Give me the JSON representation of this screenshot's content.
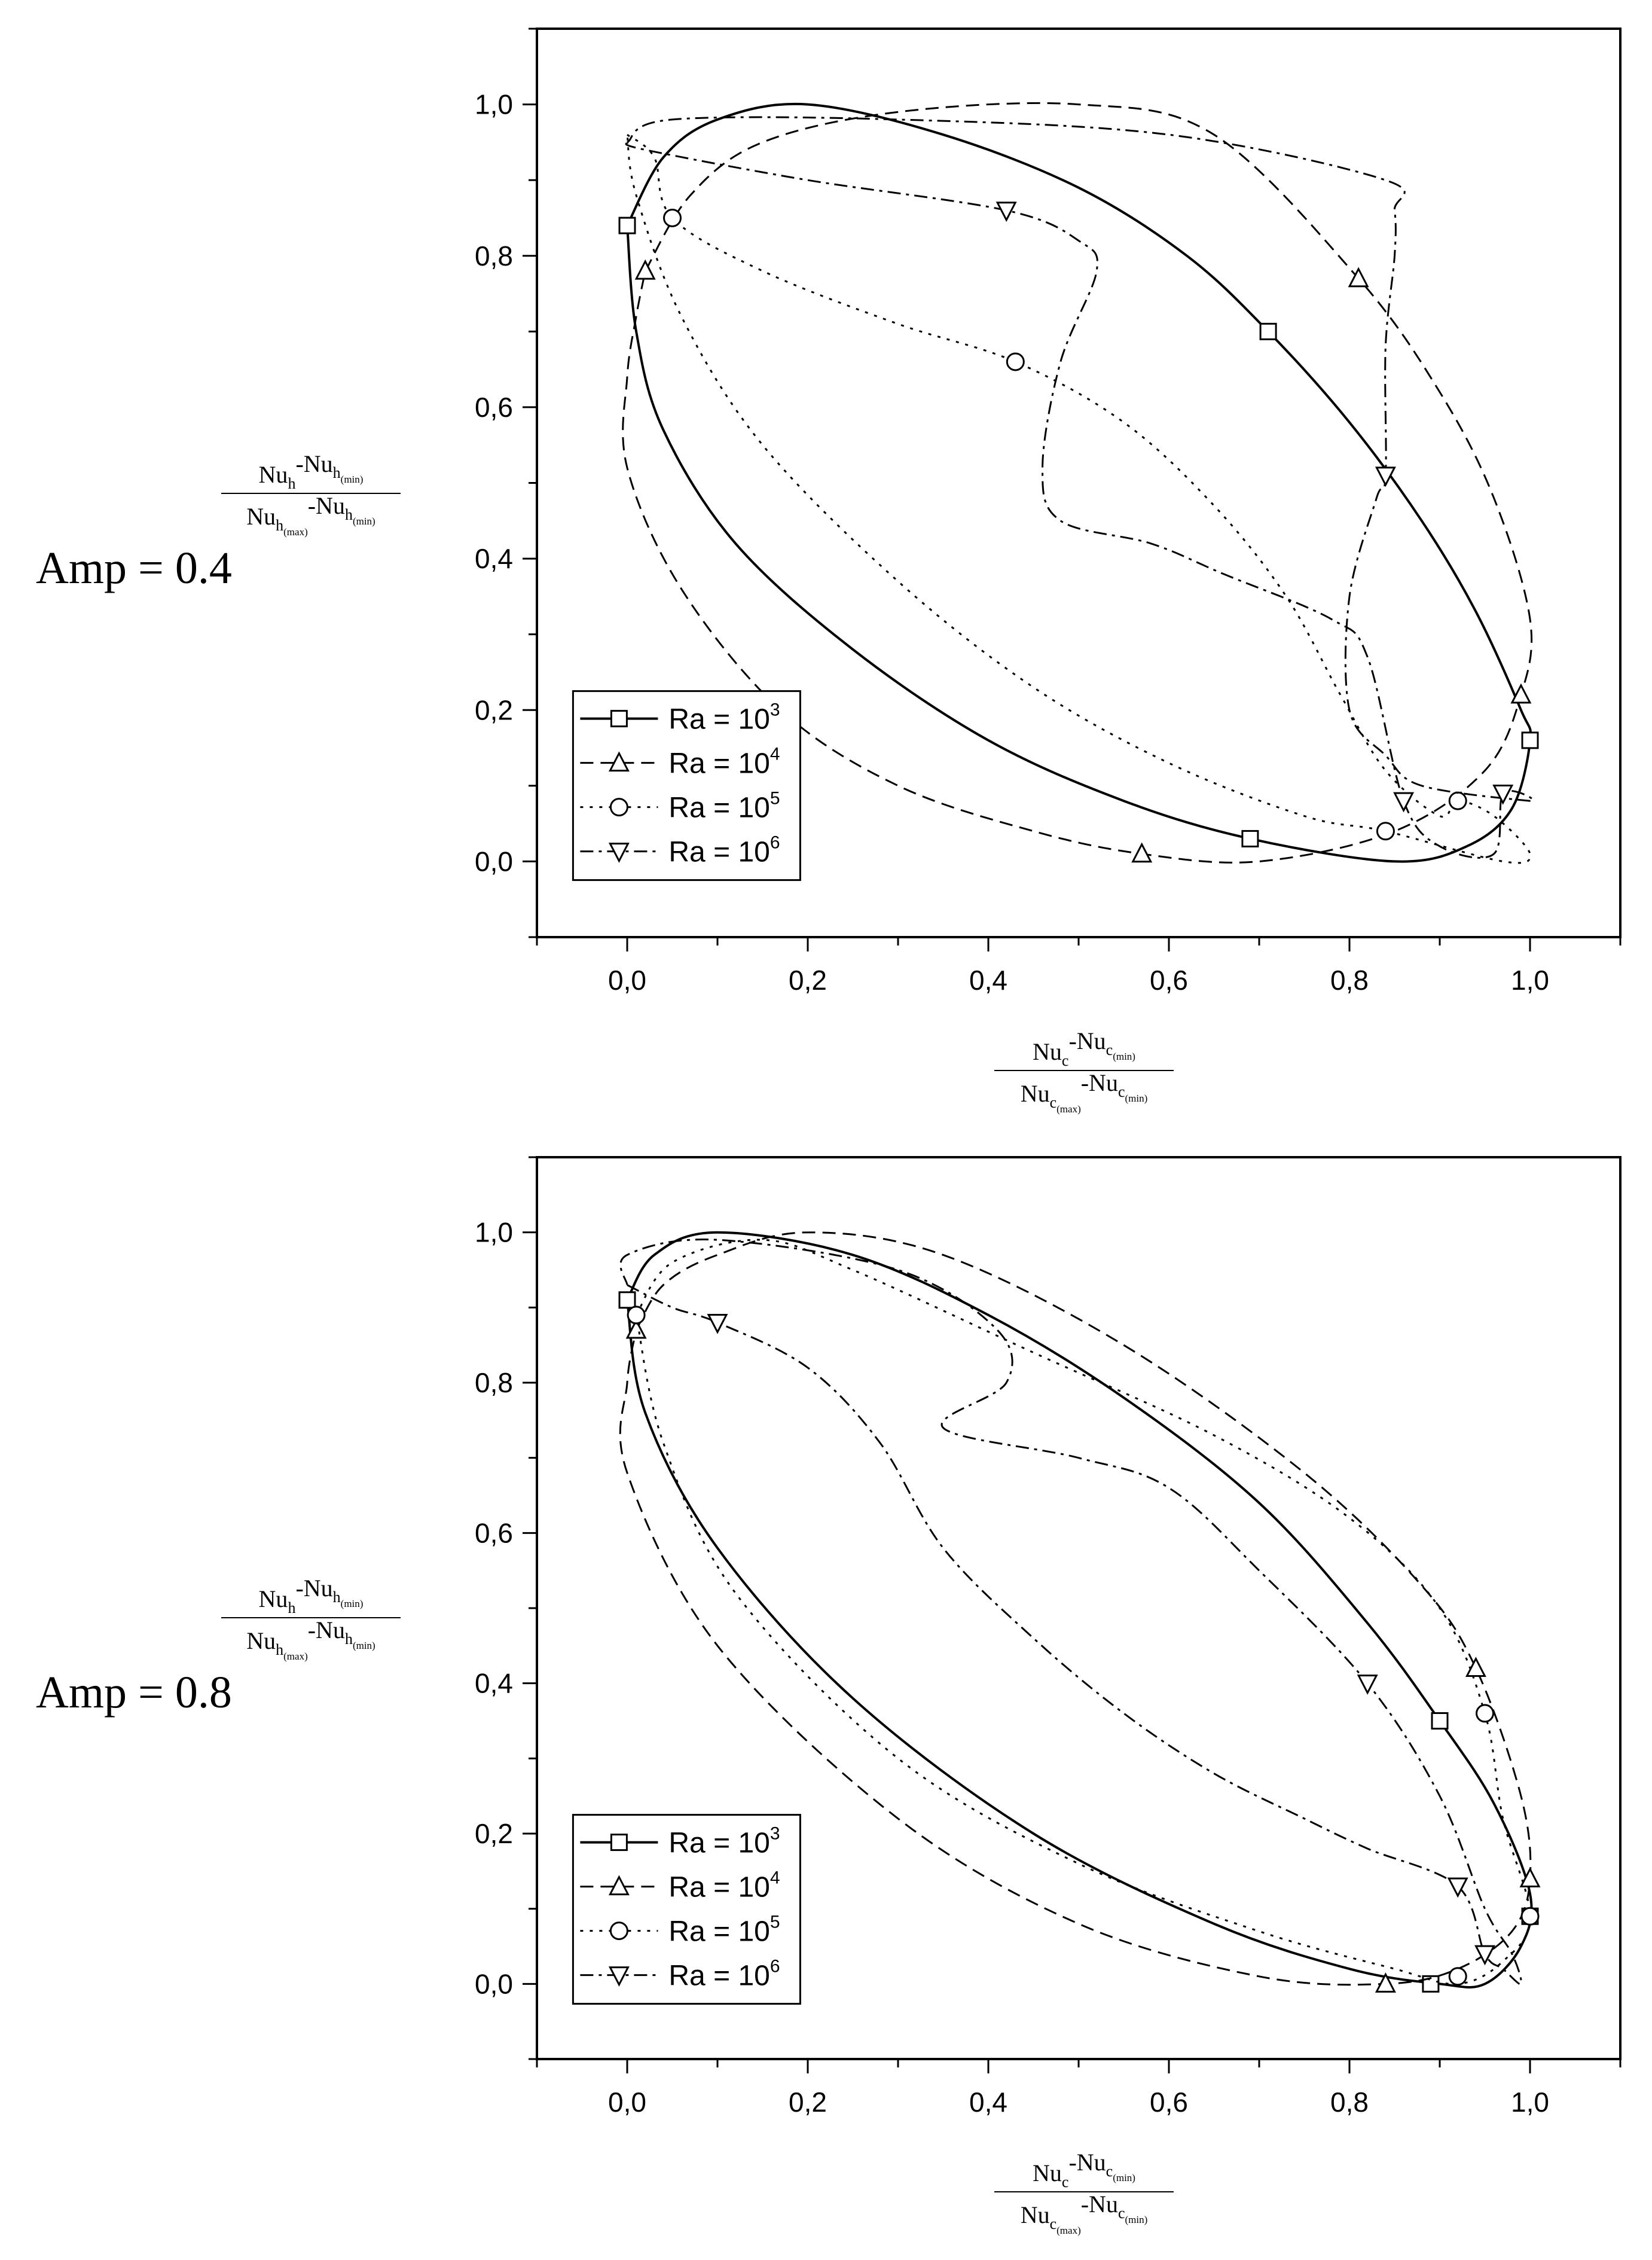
{
  "figure": {
    "panels": [
      {
        "label": "Amp = 0.4"
      },
      {
        "label": "Amp = 0.8"
      }
    ],
    "y_axis_label": {
      "numerator": [
        "Nu",
        "h",
        "",
        "-Nu",
        "h",
        "(min)"
      ],
      "denominator": [
        "Nu",
        "h",
        "(max)",
        "-Nu",
        "h",
        "(min)"
      ]
    },
    "x_axis_label": {
      "numerator": [
        "Nu",
        "c",
        "",
        "-Nu",
        "c",
        "(min)"
      ],
      "denominator": [
        "Nu",
        "c",
        "(max)",
        "-Nu",
        "c",
        "(min)"
      ]
    }
  },
  "chart_data": [
    {
      "type": "line",
      "title": "Amp = 0.4",
      "xlim": [
        -0.1,
        1.1
      ],
      "ylim": [
        -0.1,
        1.1
      ],
      "xticks": [
        "0,0",
        "0,2",
        "0,4",
        "0,6",
        "0,8",
        "1,0"
      ],
      "yticks": [
        "0,0",
        "0,2",
        "0,4",
        "0,6",
        "0,8",
        "1,0"
      ],
      "legend_position": "bottom-left",
      "series": [
        {
          "name": "Ra = 10",
          "sup": "3",
          "marker": "square",
          "dash": "solid",
          "points": [
            [
              0.0,
              0.84
            ],
            [
              0.04,
              0.93
            ],
            [
              0.1,
              0.98
            ],
            [
              0.2,
              1.0
            ],
            [
              0.35,
              0.96
            ],
            [
              0.5,
              0.89
            ],
            [
              0.62,
              0.8
            ],
            [
              0.71,
              0.7
            ],
            [
              0.8,
              0.58
            ],
            [
              0.88,
              0.45
            ],
            [
              0.94,
              0.33
            ],
            [
              0.99,
              0.2
            ],
            [
              1.0,
              0.16
            ],
            [
              0.98,
              0.07
            ],
            [
              0.93,
              0.02
            ],
            [
              0.85,
              0.0
            ],
            [
              0.69,
              0.03
            ],
            [
              0.55,
              0.08
            ],
            [
              0.4,
              0.16
            ],
            [
              0.25,
              0.28
            ],
            [
              0.12,
              0.42
            ],
            [
              0.04,
              0.57
            ],
            [
              0.01,
              0.7
            ],
            [
              0.0,
              0.84
            ]
          ],
          "markers": [
            [
              0.0,
              0.84
            ],
            [
              0.71,
              0.7
            ],
            [
              1.0,
              0.16
            ],
            [
              0.69,
              0.03
            ]
          ]
        },
        {
          "name": "Ra = 10",
          "sup": "4",
          "marker": "triangle-up",
          "dash": "dashed",
          "points": [
            [
              0.02,
              0.78
            ],
            [
              0.07,
              0.88
            ],
            [
              0.15,
              0.95
            ],
            [
              0.3,
              0.99
            ],
            [
              0.5,
              1.0
            ],
            [
              0.65,
              0.96
            ],
            [
              0.81,
              0.77
            ],
            [
              0.9,
              0.62
            ],
            [
              0.96,
              0.48
            ],
            [
              1.0,
              0.32
            ],
            [
              0.99,
              0.22
            ],
            [
              0.95,
              0.12
            ],
            [
              0.85,
              0.04
            ],
            [
              0.7,
              0.0
            ],
            [
              0.57,
              0.01
            ],
            [
              0.45,
              0.04
            ],
            [
              0.3,
              0.1
            ],
            [
              0.17,
              0.2
            ],
            [
              0.06,
              0.36
            ],
            [
              0.0,
              0.52
            ],
            [
              0.0,
              0.64
            ],
            [
              0.01,
              0.72
            ],
            [
              0.02,
              0.78
            ]
          ],
          "markers": [
            [
              0.02,
              0.78
            ],
            [
              0.81,
              0.77
            ],
            [
              0.99,
              0.22
            ],
            [
              0.57,
              0.01
            ]
          ]
        },
        {
          "name": "Ra = 10",
          "sup": "5",
          "marker": "circle",
          "dash": "dotted",
          "points": [
            [
              0.0,
              0.96
            ],
            [
              0.03,
              0.93
            ],
            [
              0.05,
              0.85
            ],
            [
              0.15,
              0.78
            ],
            [
              0.3,
              0.71
            ],
            [
              0.43,
              0.66
            ],
            [
              0.55,
              0.58
            ],
            [
              0.65,
              0.47
            ],
            [
              0.73,
              0.35
            ],
            [
              0.79,
              0.22
            ],
            [
              0.84,
              0.12
            ],
            [
              0.9,
              0.06
            ],
            [
              0.92,
              0.08
            ],
            [
              0.96,
              0.06
            ],
            [
              1.0,
              0.01
            ],
            [
              0.97,
              0.0
            ],
            [
              0.84,
              0.04
            ],
            [
              0.75,
              0.06
            ],
            [
              0.6,
              0.13
            ],
            [
              0.45,
              0.23
            ],
            [
              0.3,
              0.37
            ],
            [
              0.15,
              0.55
            ],
            [
              0.06,
              0.72
            ],
            [
              0.01,
              0.88
            ],
            [
              0.0,
              0.96
            ]
          ],
          "markers": [
            [
              0.05,
              0.85
            ],
            [
              0.43,
              0.66
            ],
            [
              0.84,
              0.04
            ],
            [
              0.92,
              0.08
            ]
          ]
        },
        {
          "name": "Ra = 10",
          "sup": "6",
          "marker": "triangle-down",
          "dash": "dashdot",
          "points": [
            [
              0.0,
              0.95
            ],
            [
              0.02,
              0.94
            ],
            [
              0.2,
              0.9
            ],
            [
              0.42,
              0.86
            ],
            [
              0.5,
              0.82
            ],
            [
              0.52,
              0.78
            ],
            [
              0.48,
              0.66
            ],
            [
              0.46,
              0.52
            ],
            [
              0.48,
              0.45
            ],
            [
              0.58,
              0.42
            ],
            [
              0.66,
              0.38
            ],
            [
              0.78,
              0.32
            ],
            [
              0.82,
              0.27
            ],
            [
              0.86,
              0.08
            ],
            [
              0.9,
              0.02
            ],
            [
              0.96,
              0.01
            ],
            [
              0.97,
              0.09
            ],
            [
              1.0,
              0.08
            ],
            [
              0.88,
              0.1
            ],
            [
              0.84,
              0.14
            ],
            [
              0.8,
              0.2
            ],
            [
              0.8,
              0.35
            ],
            [
              0.83,
              0.48
            ],
            [
              0.84,
              0.51
            ],
            [
              0.84,
              0.68
            ],
            [
              0.85,
              0.8
            ],
            [
              0.85,
              0.86
            ],
            [
              0.84,
              0.9
            ],
            [
              0.6,
              0.96
            ],
            [
              0.3,
              0.98
            ],
            [
              0.05,
              0.98
            ],
            [
              0.0,
              0.95
            ]
          ],
          "markers": [
            [
              0.42,
              0.86
            ],
            [
              0.84,
              0.51
            ],
            [
              0.86,
              0.08
            ],
            [
              0.97,
              0.09
            ]
          ]
        }
      ]
    },
    {
      "type": "line",
      "title": "Amp = 0.8",
      "xlim": [
        -0.1,
        1.1
      ],
      "ylim": [
        -0.1,
        1.1
      ],
      "xticks": [
        "0,0",
        "0,2",
        "0,4",
        "0,6",
        "0,8",
        "1,0"
      ],
      "yticks": [
        "0,0",
        "0,2",
        "0,4",
        "0,6",
        "0,8",
        "1,0"
      ],
      "legend_position": "bottom-left",
      "series": [
        {
          "name": "Ra = 10",
          "sup": "3",
          "marker": "square",
          "dash": "solid",
          "points": [
            [
              0.0,
              0.91
            ],
            [
              0.03,
              0.97
            ],
            [
              0.1,
              1.0
            ],
            [
              0.25,
              0.97
            ],
            [
              0.4,
              0.89
            ],
            [
              0.55,
              0.78
            ],
            [
              0.7,
              0.64
            ],
            [
              0.82,
              0.48
            ],
            [
              0.9,
              0.35
            ],
            [
              0.96,
              0.24
            ],
            [
              1.0,
              0.12
            ],
            [
              0.99,
              0.05
            ],
            [
              0.95,
              0.0
            ],
            [
              0.9,
              0.0
            ],
            [
              0.8,
              0.02
            ],
            [
              0.65,
              0.08
            ],
            [
              0.45,
              0.2
            ],
            [
              0.25,
              0.38
            ],
            [
              0.1,
              0.58
            ],
            [
              0.02,
              0.76
            ],
            [
              0.0,
              0.91
            ]
          ],
          "markers": [
            [
              0.0,
              0.91
            ],
            [
              0.9,
              0.35
            ],
            [
              1.0,
              0.09
            ],
            [
              0.89,
              0.0
            ]
          ]
        },
        {
          "name": "Ra = 10",
          "sup": "4",
          "marker": "triangle-up",
          "dash": "dashed",
          "points": [
            [
              0.01,
              0.87
            ],
            [
              0.04,
              0.93
            ],
            [
              0.1,
              0.97
            ],
            [
              0.2,
              1.0
            ],
            [
              0.35,
              0.97
            ],
            [
              0.55,
              0.85
            ],
            [
              0.75,
              0.68
            ],
            [
              0.88,
              0.53
            ],
            [
              0.94,
              0.42
            ],
            [
              0.99,
              0.25
            ],
            [
              1.0,
              0.14
            ],
            [
              0.98,
              0.07
            ],
            [
              0.92,
              0.02
            ],
            [
              0.84,
              0.0
            ],
            [
              0.7,
              0.01
            ],
            [
              0.5,
              0.08
            ],
            [
              0.3,
              0.22
            ],
            [
              0.1,
              0.45
            ],
            [
              0.0,
              0.68
            ],
            [
              0.0,
              0.8
            ],
            [
              0.01,
              0.87
            ]
          ],
          "markers": [
            [
              0.01,
              0.87
            ],
            [
              0.94,
              0.42
            ],
            [
              1.0,
              0.14
            ],
            [
              0.84,
              0.0
            ]
          ]
        },
        {
          "name": "Ra = 10",
          "sup": "5",
          "marker": "circle",
          "dash": "dotted",
          "points": [
            [
              0.01,
              0.89
            ],
            [
              0.05,
              0.96
            ],
            [
              0.15,
              0.99
            ],
            [
              0.25,
              0.95
            ],
            [
              0.45,
              0.84
            ],
            [
              0.65,
              0.73
            ],
            [
              0.8,
              0.62
            ],
            [
              0.9,
              0.5
            ],
            [
              0.95,
              0.36
            ],
            [
              0.97,
              0.22
            ],
            [
              1.0,
              0.09
            ],
            [
              0.97,
              0.03
            ],
            [
              0.92,
              0.0
            ],
            [
              0.85,
              0.02
            ],
            [
              0.7,
              0.07
            ],
            [
              0.5,
              0.16
            ],
            [
              0.3,
              0.3
            ],
            [
              0.12,
              0.52
            ],
            [
              0.04,
              0.72
            ],
            [
              0.01,
              0.89
            ]
          ],
          "markers": [
            [
              0.01,
              0.89
            ],
            [
              0.95,
              0.36
            ],
            [
              1.0,
              0.09
            ],
            [
              0.92,
              0.01
            ]
          ]
        },
        {
          "name": "Ra = 10",
          "sup": "6",
          "marker": "triangle-down",
          "dash": "dashdot",
          "points": [
            [
              0.0,
              0.93
            ],
            [
              0.05,
              0.9
            ],
            [
              0.1,
              0.88
            ],
            [
              0.2,
              0.82
            ],
            [
              0.28,
              0.72
            ],
            [
              0.35,
              0.58
            ],
            [
              0.45,
              0.46
            ],
            [
              0.55,
              0.36
            ],
            [
              0.65,
              0.28
            ],
            [
              0.75,
              0.22
            ],
            [
              0.82,
              0.18
            ],
            [
              0.92,
              0.13
            ],
            [
              0.95,
              0.04
            ],
            [
              0.97,
              0.02
            ],
            [
              0.99,
              0.0
            ],
            [
              0.98,
              0.04
            ],
            [
              0.95,
              0.1
            ],
            [
              0.9,
              0.25
            ],
            [
              0.82,
              0.4
            ],
            [
              0.7,
              0.55
            ],
            [
              0.6,
              0.66
            ],
            [
              0.5,
              0.7
            ],
            [
              0.35,
              0.74
            ],
            [
              0.42,
              0.8
            ],
            [
              0.41,
              0.87
            ],
            [
              0.3,
              0.95
            ],
            [
              0.1,
              0.99
            ],
            [
              0.0,
              0.97
            ],
            [
              0.0,
              0.93
            ]
          ],
          "markers": [
            [
              0.1,
              0.88
            ],
            [
              0.82,
              0.4
            ],
            [
              0.92,
              0.13
            ],
            [
              0.95,
              0.04
            ]
          ]
        }
      ]
    }
  ]
}
